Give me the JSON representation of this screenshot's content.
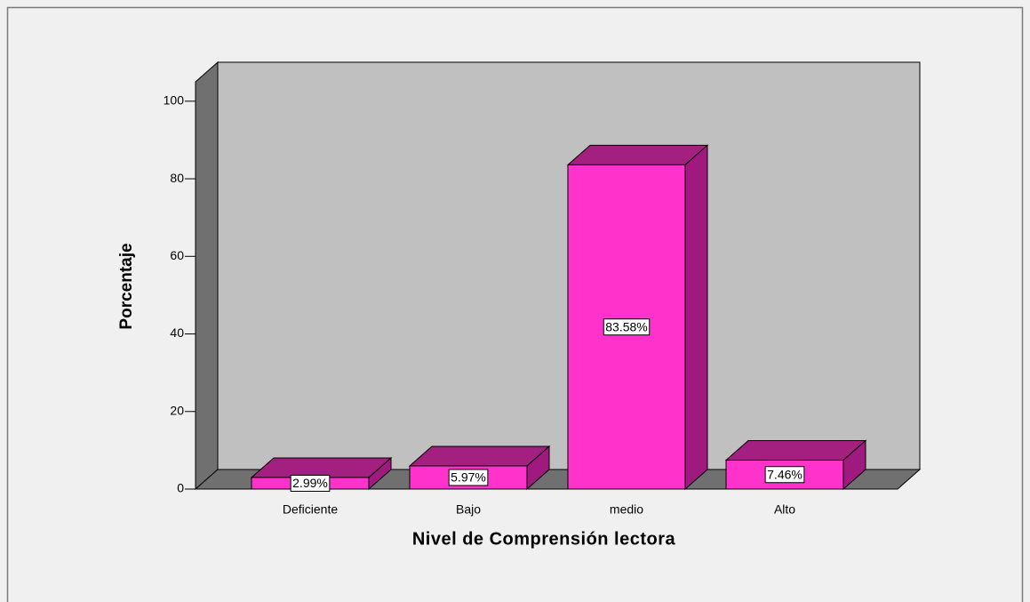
{
  "chart_data": {
    "type": "bar3d",
    "ylabel": "Porcentaje",
    "xlabel": "Nivel de Comprensión lectora",
    "categories": [
      "Deficiente",
      "Bajo",
      "medio",
      "Alto"
    ],
    "values": [
      2.99,
      5.97,
      83.58,
      7.46
    ],
    "value_labels": [
      "2.99%",
      "5.97%",
      "83.58%",
      "7.46%"
    ],
    "color": "#ff33cc",
    "ylim": [
      0,
      105
    ],
    "yticks": [
      0,
      20,
      40,
      60,
      80,
      100
    ]
  }
}
